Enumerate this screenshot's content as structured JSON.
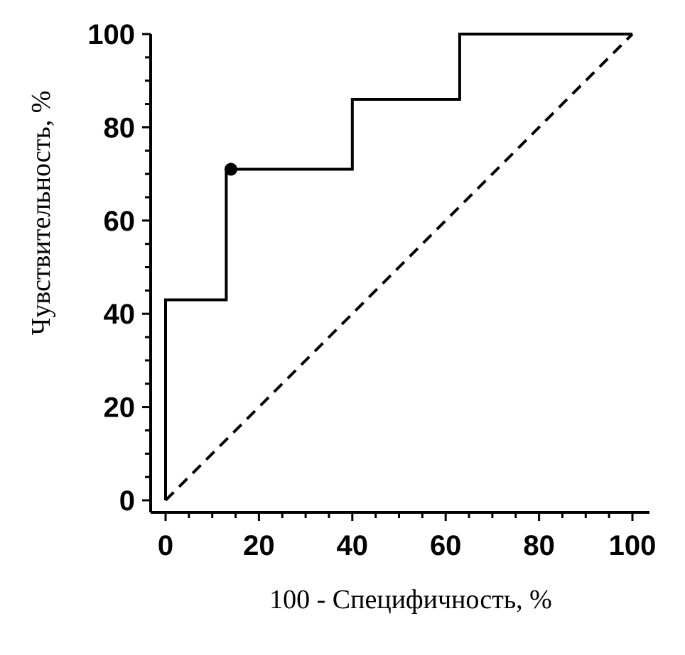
{
  "chart_data": {
    "type": "line",
    "xlabel": "100 - Специфичность, %",
    "ylabel": "Чувствительность, %",
    "xlim": [
      0,
      100
    ],
    "ylim": [
      0,
      100
    ],
    "x_ticks": [
      "0",
      "20",
      "40",
      "60",
      "80",
      "100"
    ],
    "y_ticks": [
      "0",
      "20",
      "40",
      "60",
      "80",
      "100"
    ],
    "grid": false,
    "series": [
      {
        "style": "solid-step",
        "color": "#000000",
        "points": [
          {
            "x": 0,
            "y": 0
          },
          {
            "x": 0,
            "y": 43
          },
          {
            "x": 13,
            "y": 43
          },
          {
            "x": 13,
            "y": 71
          },
          {
            "x": 40,
            "y": 71
          },
          {
            "x": 40,
            "y": 86
          },
          {
            "x": 63,
            "y": 86
          },
          {
            "x": 63,
            "y": 100
          },
          {
            "x": 100,
            "y": 100
          }
        ],
        "marker": {
          "x": 14,
          "y": 71
        }
      },
      {
        "style": "dashed-diagonal",
        "color": "#000000",
        "points": [
          {
            "x": 0,
            "y": 0
          },
          {
            "x": 100,
            "y": 100
          }
        ]
      }
    ]
  }
}
